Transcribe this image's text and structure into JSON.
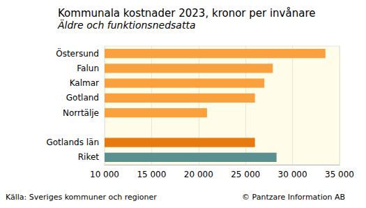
{
  "chart_data": {
    "type": "bar",
    "orientation": "horizontal",
    "title": "Kommunala kostnader 2023, kronor per invånare",
    "subtitle": "Äldre och funktionsnedsatta",
    "categories": [
      "Östersund",
      "Falun",
      "Kalmar",
      "Gotland",
      "Norrtälje",
      null,
      "Gotlands län",
      "Riket"
    ],
    "values": [
      33500,
      27900,
      27000,
      26000,
      20900,
      null,
      26000,
      28300
    ],
    "colors": [
      "#f9a03f",
      "#f9a03f",
      "#f9a03f",
      "#f9a03f",
      "#f9a03f",
      null,
      "#e8790c",
      "#5b9090"
    ],
    "xlim": [
      10000,
      35000
    ],
    "xticks": [
      {
        "value": 10000,
        "label": "10 000"
      },
      {
        "value": 15000,
        "label": "15 000"
      },
      {
        "value": 20000,
        "label": "20 000"
      },
      {
        "value": 25000,
        "label": "25 000"
      },
      {
        "value": 30000,
        "label": "30 000"
      },
      {
        "value": 35000,
        "label": "35 000"
      }
    ],
    "grid": true,
    "annotations": [
      "Källa: Sveriges kommuner och regioner",
      "© Pantzare Information AB"
    ]
  }
}
